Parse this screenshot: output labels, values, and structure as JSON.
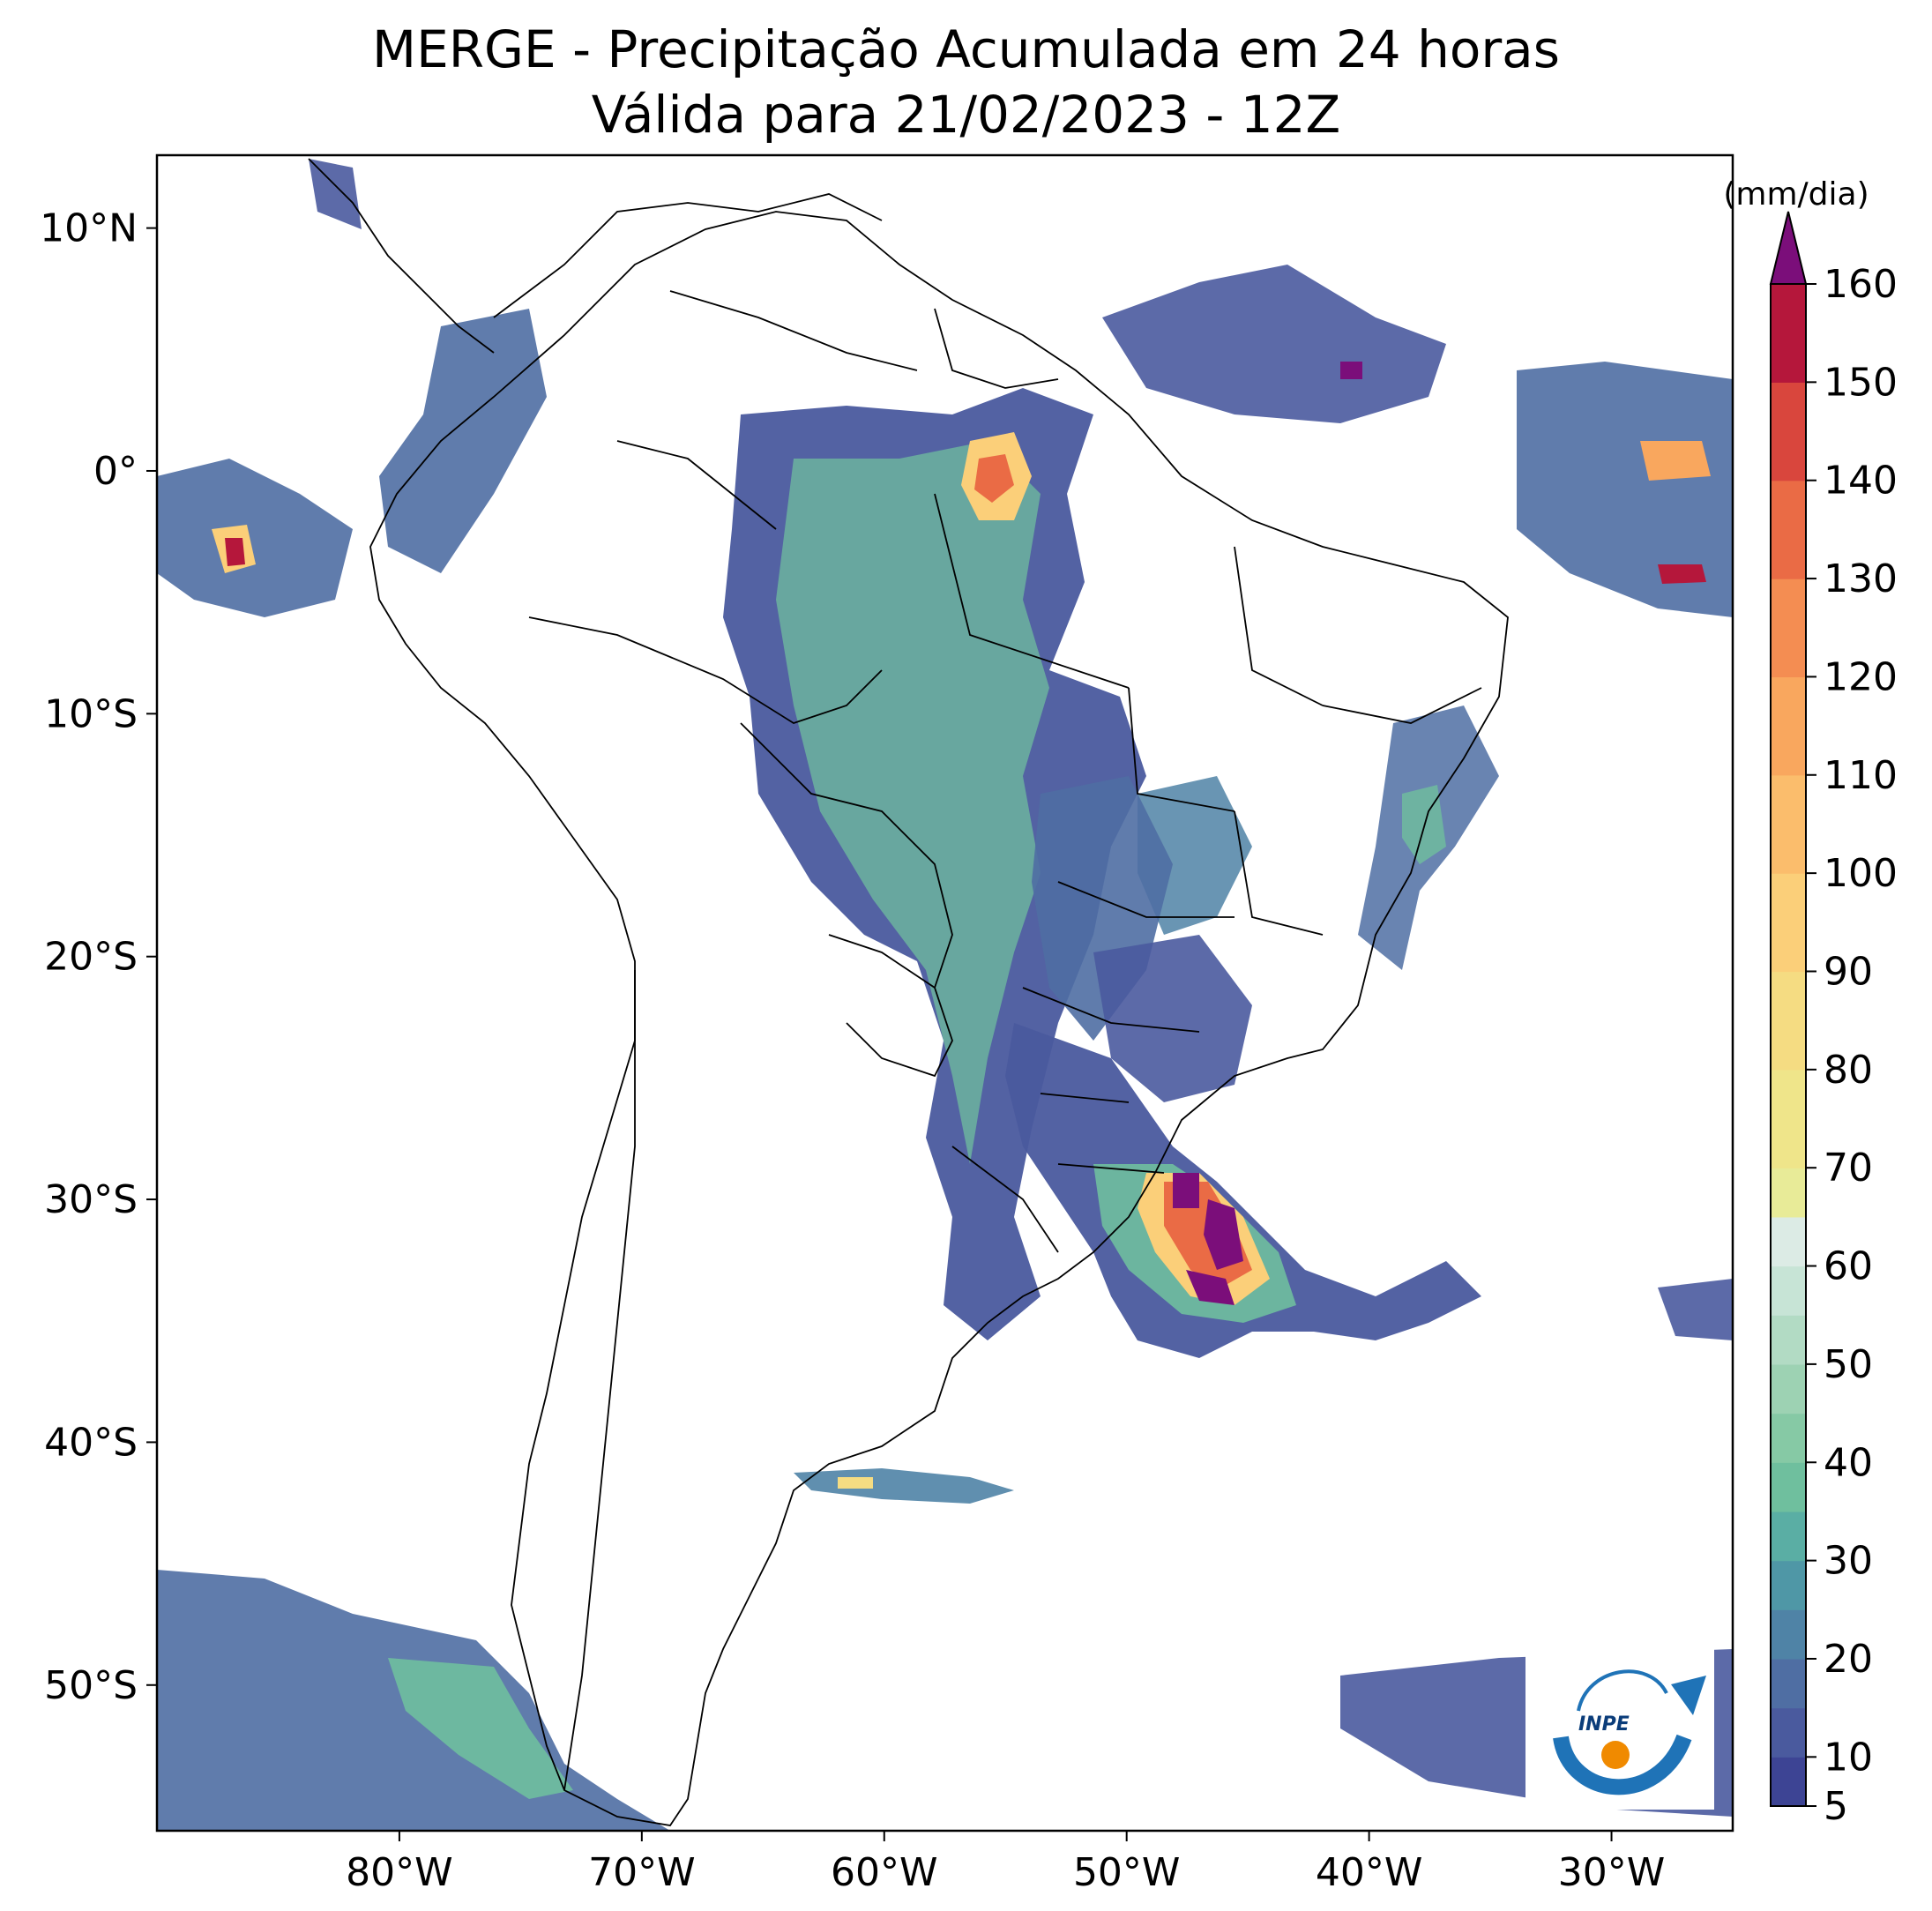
{
  "title": {
    "line1": "MERGE - Precipitação Acumulada em 24 horas",
    "line2": "Válida para 21/02/2023 - 12Z"
  },
  "map": {
    "lon_range": [
      -90,
      -25
    ],
    "lat_range": [
      -56,
      13
    ],
    "lon_ticks": [
      {
        "value": -80,
        "label": "80°W"
      },
      {
        "value": -70,
        "label": "70°W"
      },
      {
        "value": -60,
        "label": "60°W"
      },
      {
        "value": -50,
        "label": "50°W"
      },
      {
        "value": -40,
        "label": "40°W"
      },
      {
        "value": -30,
        "label": "30°W"
      }
    ],
    "lat_ticks": [
      {
        "value": 10,
        "label": "10°N"
      },
      {
        "value": 0,
        "label": "0°"
      },
      {
        "value": -10,
        "label": "10°S"
      },
      {
        "value": -20,
        "label": "20°S"
      },
      {
        "value": -30,
        "label": "30°S"
      },
      {
        "value": -40,
        "label": "40°S"
      },
      {
        "value": -50,
        "label": "50°S"
      }
    ]
  },
  "colorbar": {
    "unit": "(mm/dia)",
    "min": 5,
    "max": 160,
    "extend": "max",
    "ticks": [
      5,
      10,
      20,
      30,
      40,
      50,
      60,
      70,
      80,
      90,
      100,
      110,
      120,
      130,
      140,
      150,
      160
    ],
    "bands": [
      {
        "from": 5,
        "to": 10,
        "color": "#3d4494"
      },
      {
        "from": 10,
        "to": 15,
        "color": "#4a5a9e"
      },
      {
        "from": 15,
        "to": 20,
        "color": "#4f6ea3"
      },
      {
        "from": 20,
        "to": 25,
        "color": "#4f83a6"
      },
      {
        "from": 25,
        "to": 30,
        "color": "#4f97a6"
      },
      {
        "from": 30,
        "to": 35,
        "color": "#5aaea4"
      },
      {
        "from": 35,
        "to": 40,
        "color": "#6fbf9e"
      },
      {
        "from": 40,
        "to": 45,
        "color": "#86c9a5"
      },
      {
        "from": 45,
        "to": 50,
        "color": "#9dd2b3"
      },
      {
        "from": 50,
        "to": 55,
        "color": "#b2dbc4"
      },
      {
        "from": 55,
        "to": 60,
        "color": "#c7e4d6"
      },
      {
        "from": 60,
        "to": 65,
        "color": "#dcebe5"
      },
      {
        "from": 65,
        "to": 70,
        "color": "#e8eb98"
      },
      {
        "from": 70,
        "to": 80,
        "color": "#efe58a"
      },
      {
        "from": 80,
        "to": 90,
        "color": "#f5dc82"
      },
      {
        "from": 90,
        "to": 100,
        "color": "#fbcf79"
      },
      {
        "from": 100,
        "to": 110,
        "color": "#fbbd6c"
      },
      {
        "from": 110,
        "to": 120,
        "color": "#f9a75e"
      },
      {
        "from": 120,
        "to": 130,
        "color": "#f48d52"
      },
      {
        "from": 130,
        "to": 140,
        "color": "#ea6b45"
      },
      {
        "from": 140,
        "to": 150,
        "color": "#d9463d"
      },
      {
        "from": 150,
        "to": 160,
        "color": "#b5173b"
      }
    ],
    "extend_color": "#7b0e7a"
  },
  "logo": {
    "text": "INPE"
  }
}
